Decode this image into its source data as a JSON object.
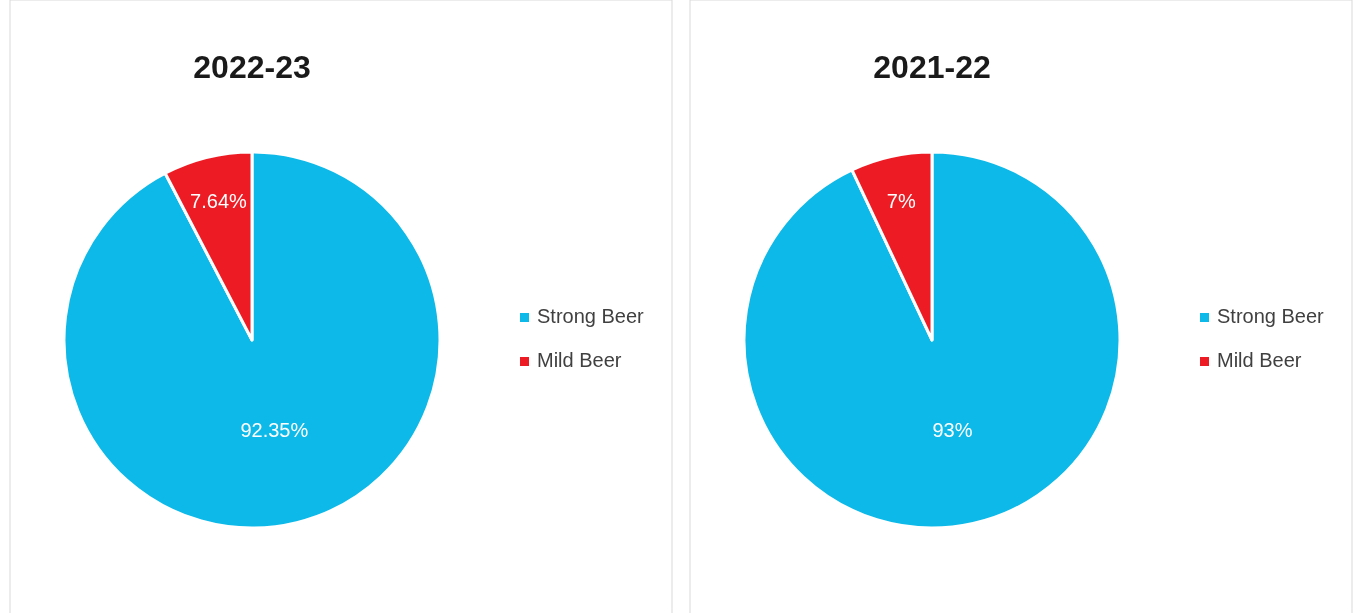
{
  "chart_data": [
    {
      "type": "pie",
      "title": "2022-23",
      "categories": [
        "Strong Beer",
        "Mild Beer"
      ],
      "values": [
        92.35,
        7.64
      ],
      "value_labels": [
        "92.35%",
        "7.64%"
      ],
      "colors": [
        "#0cb9e8",
        "#ed1c24"
      ],
      "legend": "right"
    },
    {
      "type": "pie",
      "title": "2021-22",
      "categories": [
        "Strong Beer",
        "Mild Beer"
      ],
      "values": [
        93,
        7
      ],
      "value_labels": [
        "93%",
        "7%"
      ],
      "colors": [
        "#0cb9e8",
        "#ed1c24"
      ],
      "legend": "right"
    }
  ]
}
